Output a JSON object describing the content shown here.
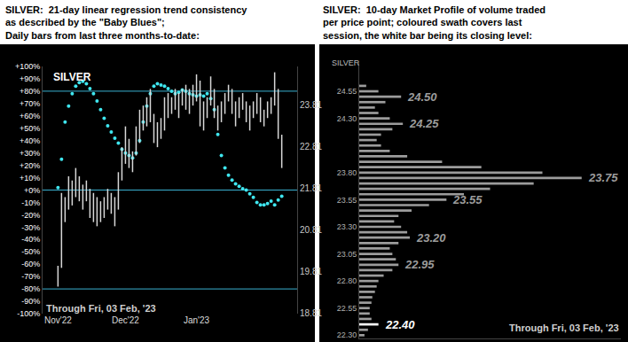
{
  "chart_data": [
    {
      "type": "range",
      "title": [
        "SILVER:  21-day linear regression trend consistency",
        "as described by the \"Baby Blues\";",
        "Daily bars from last three months-to-date:"
      ],
      "label": "SILVER",
      "note": "Through Fri, 03 Feb, '23",
      "categories": [
        "Nov'22",
        null,
        null,
        null,
        null,
        null,
        null,
        null,
        null,
        null,
        null,
        null,
        null,
        null,
        null,
        null,
        null,
        null,
        null,
        "Dec'22",
        null,
        null,
        null,
        null,
        null,
        null,
        null,
        null,
        null,
        null,
        null,
        null,
        null,
        null,
        null,
        null,
        null,
        null,
        null,
        "Jan'23",
        null,
        null,
        null,
        null,
        null,
        null,
        null,
        null,
        null,
        null,
        null,
        null,
        null,
        null,
        null,
        null,
        null,
        null,
        null,
        null,
        null,
        null,
        null,
        null
      ],
      "series": [
        {
          "type": "range",
          "axis": "y2",
          "color": "#d8d8d8",
          "high": [
            19.95,
            21.7,
            21.6,
            22.1,
            22.0,
            22.3,
            22.1,
            21.9,
            22.0,
            21.8,
            21.7,
            21.6,
            21.5,
            21.6,
            21.8,
            21.7,
            21.6,
            22.2,
            22.8,
            23.3,
            23.0,
            22.7,
            23.3,
            23.7,
            23.8,
            24.0,
            24.2,
            23.6,
            23.4,
            23.5,
            24.0,
            24.1,
            24.0,
            24.2,
            24.1,
            24.2,
            24.3,
            24.2,
            24.3,
            24.55,
            24.4,
            23.9,
            24.0,
            24.5,
            24.2,
            23.8,
            23.9,
            24.1,
            24.3,
            24.2,
            23.9,
            24.0,
            24.1,
            23.9,
            23.8,
            23.9,
            24.1,
            24.0,
            23.7,
            23.9,
            24.0,
            24.6,
            24.2,
            23.1
          ],
          "low": [
            19.45,
            19.9,
            21.0,
            21.3,
            21.4,
            21.6,
            21.5,
            21.3,
            21.5,
            21.1,
            21.0,
            20.9,
            21.0,
            21.1,
            21.3,
            21.2,
            20.9,
            21.3,
            22.0,
            22.4,
            22.3,
            22.2,
            22.6,
            22.9,
            23.2,
            23.3,
            23.4,
            22.9,
            22.8,
            23.0,
            23.2,
            23.5,
            23.6,
            23.7,
            23.5,
            23.8,
            23.7,
            23.6,
            23.8,
            23.9,
            23.3,
            23.2,
            23.5,
            23.8,
            23.5,
            23.2,
            23.4,
            23.6,
            23.9,
            23.6,
            23.3,
            23.5,
            23.7,
            23.4,
            23.2,
            23.5,
            23.6,
            23.4,
            23.3,
            23.5,
            23.6,
            23.8,
            23.0,
            22.3
          ]
        },
        {
          "type": "scatter",
          "marker": "circle",
          "color": "#3fe6ef",
          "values": [
            2,
            25,
            55,
            68,
            78,
            84,
            87,
            88,
            86,
            82,
            78,
            72,
            65,
            58,
            52,
            47,
            42,
            38,
            33,
            30,
            28,
            26,
            30,
            40,
            55,
            68,
            78,
            84,
            86,
            85,
            84,
            82,
            80,
            78,
            79,
            81,
            80,
            78,
            77,
            76,
            77,
            76,
            78,
            74,
            65,
            45,
            28,
            18,
            12,
            8,
            5,
            3,
            1,
            0,
            -3,
            -6,
            -10,
            -12,
            -12,
            -11,
            -9,
            -12,
            -8,
            -5
          ]
        }
      ],
      "hlines": {
        "values": [
          80,
          0,
          -80
        ],
        "color": "#3ab0d0"
      },
      "ylim": [
        -100,
        100
      ],
      "yticks": [
        {
          "value": 100,
          "label": "+100%"
        },
        {
          "value": 90,
          "label": "+90%"
        },
        {
          "value": 80,
          "label": "+80%"
        },
        {
          "value": 70,
          "label": "+70%"
        },
        {
          "value": 60,
          "label": "+60%"
        },
        {
          "value": 50,
          "label": "+50%"
        },
        {
          "value": 40,
          "label": "+40%"
        },
        {
          "value": 30,
          "label": "+30%"
        },
        {
          "value": 20,
          "label": "+20%"
        },
        {
          "value": 10,
          "label": "+10%"
        },
        {
          "value": 0,
          "label": "+0%"
        },
        {
          "value": -10,
          "label": "-10%"
        },
        {
          "value": -20,
          "label": "-20%"
        },
        {
          "value": -30,
          "label": "-30%"
        },
        {
          "value": -40,
          "label": "-40%"
        },
        {
          "value": -50,
          "label": "-50%"
        },
        {
          "value": -60,
          "label": "-60%"
        },
        {
          "value": -70,
          "label": "-70%"
        },
        {
          "value": -80,
          "label": "-80%"
        },
        {
          "value": -90,
          "label": "-90%"
        },
        {
          "value": -100,
          "label": "-100%"
        }
      ],
      "y2lim": [
        18.8,
        24.74
      ],
      "y2ticks": [
        18.81,
        19.81,
        20.81,
        21.81,
        22.81,
        23.81
      ],
      "grid": false
    },
    {
      "type": "bar",
      "orientation": "horizontal",
      "title": [
        "SILVER:  10-day Market Profile of volume traded",
        "per price point; coloured swath covers last",
        "session, the white bar being its closing level:"
      ],
      "label": "SILVER",
      "note": "Through Fri, 03 Feb, '23",
      "y": [
        24.6,
        24.55,
        24.5,
        24.45,
        24.4,
        24.35,
        24.3,
        24.25,
        24.2,
        24.15,
        24.1,
        24.05,
        24.0,
        23.95,
        23.9,
        23.85,
        23.8,
        23.75,
        23.7,
        23.65,
        23.6,
        23.55,
        23.5,
        23.45,
        23.4,
        23.35,
        23.3,
        23.25,
        23.2,
        23.15,
        23.1,
        23.05,
        23.0,
        22.95,
        22.9,
        22.85,
        22.8,
        22.75,
        22.7,
        22.65,
        22.6,
        22.55,
        22.5,
        22.45,
        22.4,
        22.35,
        22.3
      ],
      "values": [
        8,
        22,
        48,
        30,
        18,
        22,
        35,
        50,
        38,
        25,
        20,
        25,
        35,
        55,
        95,
        140,
        210,
        255,
        200,
        150,
        120,
        100,
        80,
        60,
        45,
        40,
        48,
        55,
        58,
        45,
        35,
        38,
        42,
        45,
        38,
        28,
        22,
        20,
        18,
        15,
        14,
        12,
        12,
        14,
        22,
        10,
        6
      ],
      "colors": [
        "#9c9c9c",
        "#9c9c9c",
        "#9c9c9c",
        "#9c9c9c",
        "#9c9c9c",
        "#9c9c9c",
        "#9c9c9c",
        "#9c9c9c",
        "#9c9c9c",
        "#9c9c9c",
        "#9c9c9c",
        "#9c9c9c",
        "#9c9c9c",
        "#9c9c9c",
        "#9c9c9c",
        "#9c9c9c",
        "#9c9c9c",
        "#9c9c9c",
        "#9c9c9c",
        "#9c9c9c",
        "#9c9c9c",
        "#9c9c9c",
        "#9c9c9c",
        "#9c9c9c",
        "#9c9c9c",
        "#9c9c9c",
        "#9c9c9c",
        "#9c9c9c",
        "#9c9c9c",
        "#9c9c9c",
        "#9c9c9c",
        "#9c9c9c",
        "#9c9c9c",
        "#9c9c9c",
        "#9c9c9c",
        "#9c9c9c",
        "#9c9c9c",
        "#9c9c9c",
        "#9c9c9c",
        "#9c9c9c",
        "#9c9c9c",
        "#9c9c9c",
        "#9c9c9c",
        "#9c9c9c",
        "#ffffff",
        "#9c9c9c",
        "#9c9c9c"
      ],
      "annotations": [
        {
          "value": 24.5,
          "label": "24.50"
        },
        {
          "value": 24.25,
          "label": "24.25"
        },
        {
          "value": 23.75,
          "label": "23.75"
        },
        {
          "value": 23.55,
          "label": "23.55"
        },
        {
          "value": 23.2,
          "label": "23.20"
        },
        {
          "value": 22.95,
          "label": "22.95"
        },
        {
          "value": 22.4,
          "label": "22.40"
        }
      ],
      "xlim": [
        0,
        300
      ],
      "ylim": [
        22.27,
        24.82
      ],
      "yticks": [
        {
          "value": 22.3,
          "label": "22.30"
        },
        22.55,
        {
          "value": 22.8,
          "label": "22.80"
        },
        23.05,
        {
          "value": 23.3,
          "label": "23.30"
        },
        23.55,
        {
          "value": 23.8,
          "label": "23.80"
        },
        23.05,
        {
          "value": 24.3,
          "label": "24.30"
        },
        24.55
      ],
      "tick_labels": "y",
      "grid": false
    }
  ]
}
